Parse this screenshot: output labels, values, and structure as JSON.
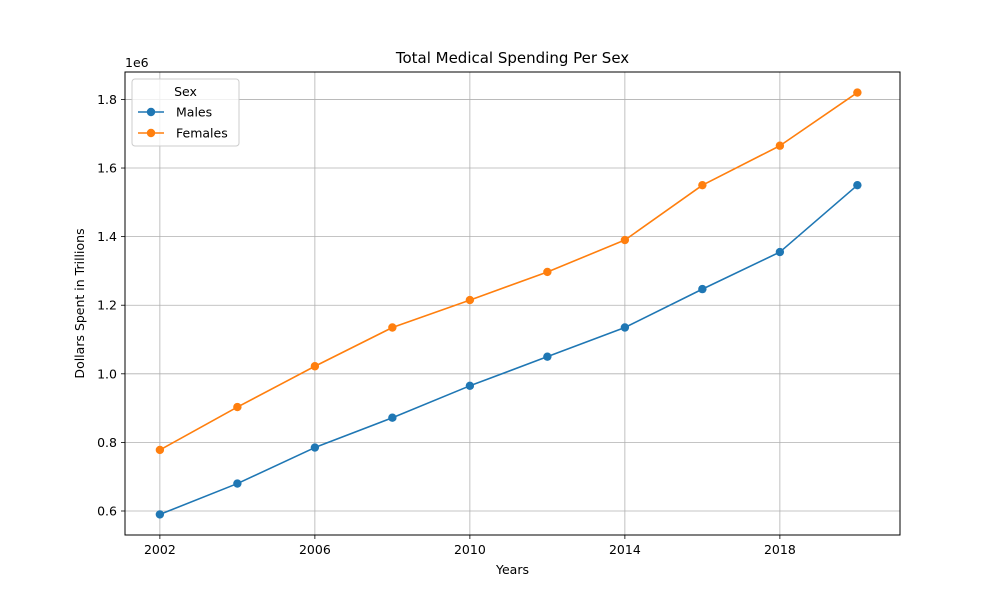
{
  "chart_data": {
    "type": "line",
    "title": "Total Medical Spending Per Sex",
    "xlabel": "Years",
    "ylabel": "Dollars Spent in Trillions",
    "y_offset_label": "1e6",
    "x": [
      2002,
      2004,
      2006,
      2008,
      2010,
      2012,
      2014,
      2016,
      2018,
      2020
    ],
    "xticks": [
      2002,
      2006,
      2010,
      2014,
      2018
    ],
    "xtick_labels": [
      "2002",
      "2006",
      "2010",
      "2014",
      "2018"
    ],
    "xlim": [
      2001.1,
      2021.1
    ],
    "yticks": [
      0.6,
      0.8,
      1.0,
      1.2,
      1.4,
      1.6,
      1.8
    ],
    "ytick_labels": [
      "0.6",
      "0.8",
      "1.0",
      "1.2",
      "1.4",
      "1.6",
      "1.8"
    ],
    "ylim": [
      0.53,
      1.88
    ],
    "y_scale_note": "values in units of 1e6",
    "grid": true,
    "legend": {
      "title": "Sex",
      "location": "top-left"
    },
    "series": [
      {
        "name": "Males",
        "color": "#1f77b4",
        "marker": "circle",
        "values": [
          0.59,
          0.68,
          0.785,
          0.872,
          0.965,
          1.05,
          1.135,
          1.247,
          1.355,
          1.55
        ]
      },
      {
        "name": "Females",
        "color": "#ff7f0e",
        "marker": "circle",
        "values": [
          0.778,
          0.903,
          1.022,
          1.135,
          1.215,
          1.297,
          1.39,
          1.55,
          1.665,
          1.82
        ]
      }
    ]
  }
}
